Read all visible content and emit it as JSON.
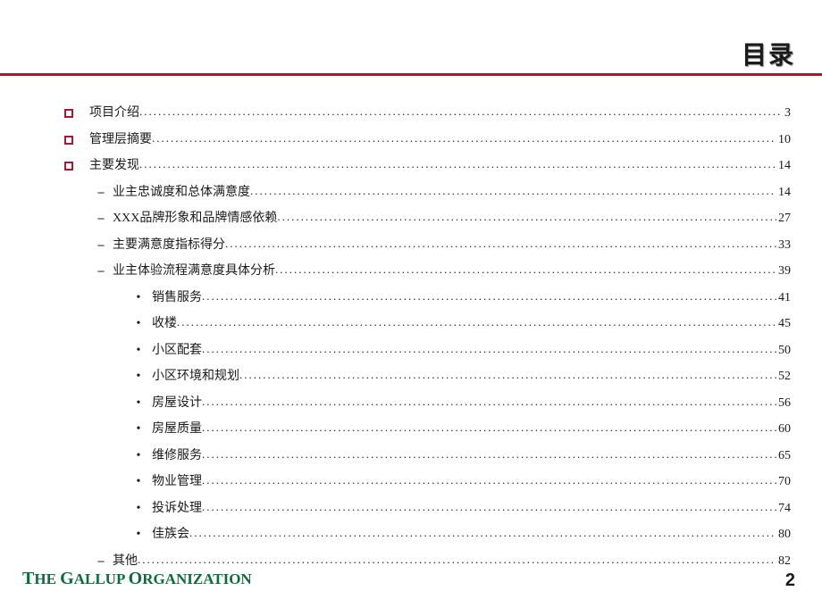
{
  "title": "目录",
  "colors": {
    "accent": "#a6192e",
    "org_text": "#0a6e3a",
    "text": "#1a1a1a",
    "background": "#ffffff"
  },
  "fonts": {
    "body": "SimSun",
    "org": "Times New Roman",
    "title_size": 28,
    "body_size": 14
  },
  "toc": [
    {
      "level": 0,
      "label": "项目介绍",
      "page": "3"
    },
    {
      "level": 0,
      "label": "管理层摘要",
      "page": "10"
    },
    {
      "level": 0,
      "label": "主要发现",
      "page": "14"
    },
    {
      "level": 1,
      "label": "业主忠诚度和总体满意度",
      "page": "14"
    },
    {
      "level": 1,
      "label": "XXX品牌形象和品牌情感依赖",
      "page": "27"
    },
    {
      "level": 1,
      "label": "主要满意度指标得分",
      "page": "33"
    },
    {
      "level": 1,
      "label": "业主体验流程满意度具体分析",
      "page": "39"
    },
    {
      "level": 2,
      "label": "销售服务",
      "page": "41"
    },
    {
      "level": 2,
      "label": "收楼",
      "page": "45"
    },
    {
      "level": 2,
      "label": "小区配套",
      "page": "50"
    },
    {
      "level": 2,
      "label": "小区环境和规划",
      "page": "52"
    },
    {
      "level": 2,
      "label": "房屋设计",
      "page": "56"
    },
    {
      "level": 2,
      "label": "房屋质量",
      "page": "60"
    },
    {
      "level": 2,
      "label": "维修服务",
      "page": "65"
    },
    {
      "level": 2,
      "label": "物业管理",
      "page": "70"
    },
    {
      "level": 2,
      "label": "投诉处理",
      "page": "74"
    },
    {
      "level": 2,
      "label": "佳族会",
      "page": "80"
    },
    {
      "level": 1,
      "label": "其他",
      "page": "82"
    }
  ],
  "footer": {
    "org": "THE GALLUP ORGANIZATION",
    "page_number": "2"
  }
}
